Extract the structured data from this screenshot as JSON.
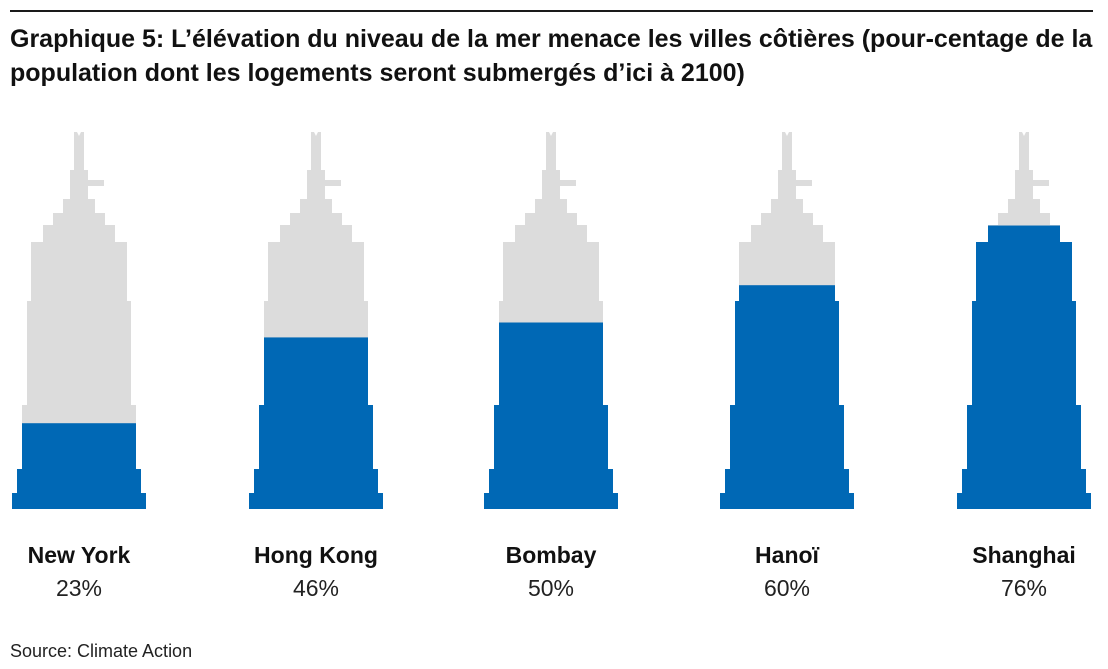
{
  "title": "Graphique 5: L’élévation du niveau de la mer menace les villes côtières (pour-centage de la population dont les logements seront submergés d’ici à 2100)",
  "source": "Source: Climate Action",
  "colors": {
    "filled": "#0068b5",
    "unfilled": "#dcdcdc",
    "text": "#111111"
  },
  "chart_data": {
    "type": "bar",
    "title": "Graphique 5: L’élévation du niveau de la mer menace les villes côtières (pour-centage de la population dont les logements seront submergés d’ici à 2100)",
    "categories": [
      "New York",
      "Hong Kong",
      "Bombay",
      "Hanoï",
      "Shanghai"
    ],
    "values": [
      23,
      46,
      50,
      60,
      76
    ],
    "value_labels": [
      "23%",
      "46%",
      "50%",
      "60%",
      "76%"
    ],
    "ylim": [
      0,
      100
    ],
    "grid": false,
    "legend": "none"
  }
}
